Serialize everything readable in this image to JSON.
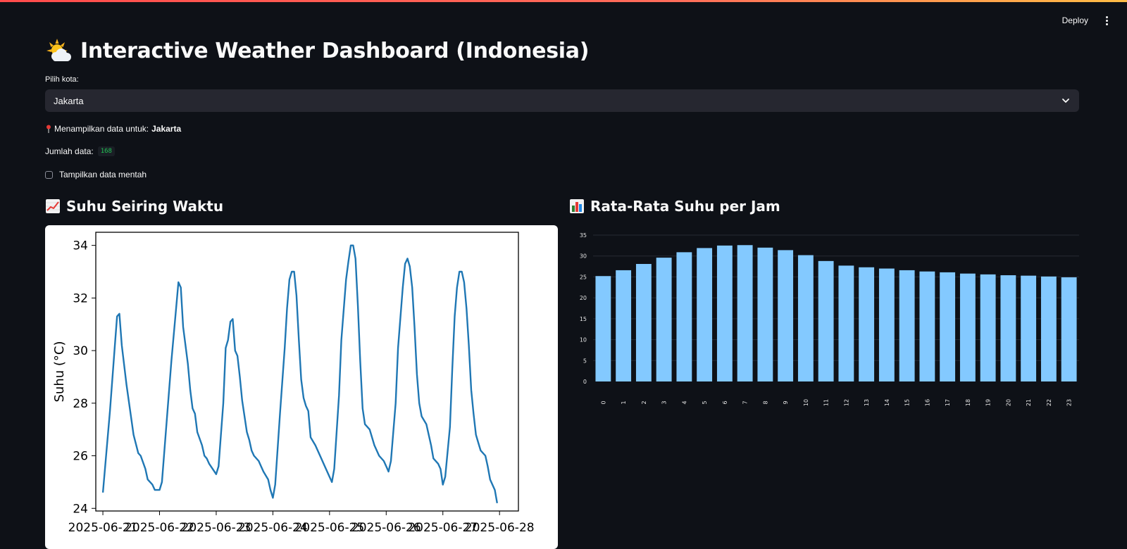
{
  "app": {
    "deploy_label": "Deploy",
    "menu_icon": "kebab-menu-icon"
  },
  "header": {
    "title": "Interactive Weather Dashboard (Indonesia)",
    "icon": "sun-behind-cloud-icon"
  },
  "city_select": {
    "label": "Pilih kota:",
    "value": "Jakarta"
  },
  "info": {
    "prefix": "Menampilkan data untuk:",
    "city": "Jakarta",
    "icon": "pin-icon"
  },
  "count": {
    "label": "Jumlah data:",
    "value": "168"
  },
  "raw_toggle": {
    "label": "Tampilkan data mentah",
    "checked": false
  },
  "line_section": {
    "heading": "Suhu Seiring Waktu",
    "icon": "chart-increasing-icon"
  },
  "bar_section": {
    "heading": "Rata-Rata Suhu per Jam",
    "icon": "bar-chart-icon"
  },
  "colors": {
    "background": "#0e1117",
    "line": "#1f77b4",
    "bar": "#83c9ff",
    "widget": "#262730"
  },
  "chart_data": [
    {
      "type": "line",
      "ylabel": "Suhu (°C)",
      "xlabel": "",
      "x_tick_labels": [
        "2025-06-21",
        "2025-06-22",
        "2025-06-23",
        "2025-06-24",
        "2025-06-25",
        "2025-06-26",
        "2025-06-27",
        "2025-06-28"
      ],
      "y_ticks": [
        24,
        26,
        28,
        30,
        32,
        34
      ],
      "ylim": [
        23.9,
        34.5
      ],
      "grid": false,
      "series": [
        {
          "points": [
            [
              "2025-06-21T00:00",
              24.6
            ],
            [
              "2025-06-21T03:00",
              27.7
            ],
            [
              "2025-06-21T05:00",
              30.1
            ],
            [
              "2025-06-21T06:00",
              31.3
            ],
            [
              "2025-06-21T07:00",
              31.4
            ],
            [
              "2025-06-21T08:00",
              30.2
            ],
            [
              "2025-06-21T10:00",
              28.7
            ],
            [
              "2025-06-21T13:00",
              26.8
            ],
            [
              "2025-06-21T15:00",
              26.1
            ],
            [
              "2025-06-21T16:00",
              26.0
            ],
            [
              "2025-06-21T18:00",
              25.5
            ],
            [
              "2025-06-21T19:00",
              25.1
            ],
            [
              "2025-06-21T21:00",
              24.9
            ],
            [
              "2025-06-21T22:00",
              24.7
            ],
            [
              "2025-06-22T00:00",
              24.7
            ],
            [
              "2025-06-22T01:00",
              25.0
            ],
            [
              "2025-06-22T03:00",
              27.3
            ],
            [
              "2025-06-22T05:00",
              29.6
            ],
            [
              "2025-06-22T07:00",
              31.6
            ],
            [
              "2025-06-22T08:00",
              32.6
            ],
            [
              "2025-06-22T09:00",
              32.4
            ],
            [
              "2025-06-22T10:00",
              30.9
            ],
            [
              "2025-06-22T12:00",
              29.5
            ],
            [
              "2025-06-22T13:00",
              28.5
            ],
            [
              "2025-06-22T14:00",
              27.8
            ],
            [
              "2025-06-22T15:00",
              27.6
            ],
            [
              "2025-06-22T16:00",
              26.9
            ],
            [
              "2025-06-22T18:00",
              26.4
            ],
            [
              "2025-06-22T19:00",
              26.0
            ],
            [
              "2025-06-22T20:00",
              25.9
            ],
            [
              "2025-06-22T21:00",
              25.7
            ],
            [
              "2025-06-23T00:00",
              25.3
            ],
            [
              "2025-06-23T01:00",
              25.6
            ],
            [
              "2025-06-23T03:00",
              28.0
            ],
            [
              "2025-06-23T04:00",
              30.1
            ],
            [
              "2025-06-23T05:00",
              30.4
            ],
            [
              "2025-06-23T06:00",
              31.1
            ],
            [
              "2025-06-23T07:00",
              31.2
            ],
            [
              "2025-06-23T08:00",
              30.0
            ],
            [
              "2025-06-23T09:00",
              29.8
            ],
            [
              "2025-06-23T10:00",
              29.0
            ],
            [
              "2025-06-23T11:00",
              28.1
            ],
            [
              "2025-06-23T13:00",
              26.9
            ],
            [
              "2025-06-23T14:00",
              26.6
            ],
            [
              "2025-06-23T15:00",
              26.2
            ],
            [
              "2025-06-23T16:00",
              26.0
            ],
            [
              "2025-06-23T18:00",
              25.8
            ],
            [
              "2025-06-23T19:00",
              25.6
            ],
            [
              "2025-06-23T20:00",
              25.4
            ],
            [
              "2025-06-23T22:00",
              25.1
            ],
            [
              "2025-06-23T23:00",
              24.7
            ],
            [
              "2025-06-24T00:00",
              24.4
            ],
            [
              "2025-06-24T01:00",
              24.9
            ],
            [
              "2025-06-24T03:00",
              27.6
            ],
            [
              "2025-06-24T05:00",
              30.1
            ],
            [
              "2025-06-24T06:00",
              31.6
            ],
            [
              "2025-06-24T07:00",
              32.7
            ],
            [
              "2025-06-24T08:00",
              33.0
            ],
            [
              "2025-06-24T09:00",
              33.0
            ],
            [
              "2025-06-24T10:00",
              32.1
            ],
            [
              "2025-06-24T11:00",
              30.4
            ],
            [
              "2025-06-24T12:00",
              28.9
            ],
            [
              "2025-06-24T13:00",
              28.2
            ],
            [
              "2025-06-24T14:00",
              27.9
            ],
            [
              "2025-06-24T15:00",
              27.7
            ],
            [
              "2025-06-24T16:00",
              26.7
            ],
            [
              "2025-06-24T18:00",
              26.4
            ],
            [
              "2025-06-24T20:00",
              26.0
            ],
            [
              "2025-06-24T22:00",
              25.6
            ],
            [
              "2025-06-25T00:00",
              25.2
            ],
            [
              "2025-06-25T01:00",
              25.0
            ],
            [
              "2025-06-25T02:00",
              25.5
            ],
            [
              "2025-06-25T04:00",
              28.3
            ],
            [
              "2025-06-25T05:00",
              30.4
            ],
            [
              "2025-06-25T07:00",
              32.7
            ],
            [
              "2025-06-25T08:00",
              33.4
            ],
            [
              "2025-06-25T09:00",
              34.0
            ],
            [
              "2025-06-25T10:00",
              34.0
            ],
            [
              "2025-06-25T11:00",
              33.5
            ],
            [
              "2025-06-25T12:00",
              31.7
            ],
            [
              "2025-06-25T13:00",
              29.6
            ],
            [
              "2025-06-25T14:00",
              27.8
            ],
            [
              "2025-06-25T15:00",
              27.2
            ],
            [
              "2025-06-25T17:00",
              27.0
            ],
            [
              "2025-06-25T19:00",
              26.4
            ],
            [
              "2025-06-25T21:00",
              26.0
            ],
            [
              "2025-06-25T23:00",
              25.8
            ],
            [
              "2025-06-26T00:00",
              25.6
            ],
            [
              "2025-06-26T01:00",
              25.4
            ],
            [
              "2025-06-26T02:00",
              25.8
            ],
            [
              "2025-06-26T04:00",
              28.0
            ],
            [
              "2025-06-26T05:00",
              30.1
            ],
            [
              "2025-06-26T07:00",
              32.4
            ],
            [
              "2025-06-26T08:00",
              33.3
            ],
            [
              "2025-06-26T09:00",
              33.5
            ],
            [
              "2025-06-26T10:00",
              33.2
            ],
            [
              "2025-06-26T11:00",
              32.4
            ],
            [
              "2025-06-26T12:00",
              30.9
            ],
            [
              "2025-06-26T13:00",
              29.1
            ],
            [
              "2025-06-26T14:00",
              28.0
            ],
            [
              "2025-06-26T15:00",
              27.5
            ],
            [
              "2025-06-26T17:00",
              27.2
            ],
            [
              "2025-06-26T19:00",
              26.4
            ],
            [
              "2025-06-26T20:00",
              25.9
            ],
            [
              "2025-06-26T22:00",
              25.7
            ],
            [
              "2025-06-26T23:00",
              25.5
            ],
            [
              "2025-06-27T00:00",
              24.9
            ],
            [
              "2025-06-27T01:00",
              25.2
            ],
            [
              "2025-06-27T03:00",
              27.1
            ],
            [
              "2025-06-27T04:00",
              29.3
            ],
            [
              "2025-06-27T05:00",
              31.3
            ],
            [
              "2025-06-27T06:00",
              32.4
            ],
            [
              "2025-06-27T07:00",
              33.0
            ],
            [
              "2025-06-27T08:00",
              33.0
            ],
            [
              "2025-06-27T09:00",
              32.6
            ],
            [
              "2025-06-27T10:00",
              31.6
            ],
            [
              "2025-06-27T11:00",
              30.2
            ],
            [
              "2025-06-27T12:00",
              28.5
            ],
            [
              "2025-06-27T13:00",
              27.6
            ],
            [
              "2025-06-27T14:00",
              26.8
            ],
            [
              "2025-06-27T15:00",
              26.5
            ],
            [
              "2025-06-27T16:00",
              26.2
            ],
            [
              "2025-06-27T18:00",
              26.0
            ],
            [
              "2025-06-27T19:00",
              25.6
            ],
            [
              "2025-06-27T20:00",
              25.1
            ],
            [
              "2025-06-27T22:00",
              24.7
            ],
            [
              "2025-06-27T23:00",
              24.2
            ]
          ]
        }
      ]
    },
    {
      "type": "bar",
      "categories": [
        "0",
        "1",
        "2",
        "3",
        "4",
        "5",
        "6",
        "7",
        "8",
        "9",
        "10",
        "11",
        "12",
        "13",
        "14",
        "15",
        "16",
        "17",
        "18",
        "19",
        "20",
        "21",
        "22",
        "23"
      ],
      "values": [
        25.2,
        26.6,
        28.1,
        29.6,
        30.9,
        31.9,
        32.5,
        32.6,
        32.0,
        31.4,
        30.2,
        28.8,
        27.7,
        27.3,
        27.0,
        26.6,
        26.3,
        26.1,
        25.8,
        25.6,
        25.4,
        25.3,
        25.1,
        24.9
      ],
      "y_ticks": [
        0,
        5,
        10,
        15,
        20,
        25,
        30,
        35
      ],
      "ylim": [
        0,
        35
      ],
      "grid": true
    }
  ]
}
